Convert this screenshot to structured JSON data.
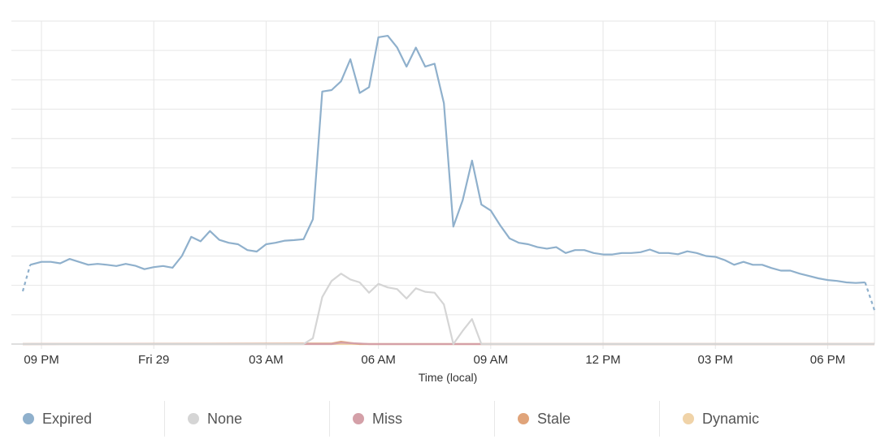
{
  "chart_data": {
    "type": "line",
    "xlabel": "Time (local)",
    "x_tick_labels": [
      "09 PM",
      "Fri 29",
      "03 AM",
      "06 AM",
      "09 AM",
      "12 PM",
      "03 PM",
      "06 PM"
    ],
    "ylim": [
      0,
      110
    ],
    "grid": true,
    "legend_position": "bottom",
    "series": [
      {
        "name": "Expired",
        "color": "#8fb0cc",
        "values": [
          [
            0.0,
            18
          ],
          [
            0.2,
            27
          ],
          [
            0.5,
            28
          ],
          [
            0.75,
            28
          ],
          [
            1.0,
            27.5
          ],
          [
            1.25,
            29
          ],
          [
            1.5,
            28
          ],
          [
            1.75,
            27
          ],
          [
            2.0,
            27.3
          ],
          [
            2.25,
            27
          ],
          [
            2.5,
            26.6
          ],
          [
            2.75,
            27.3
          ],
          [
            3.0,
            26.7
          ],
          [
            3.25,
            25.5
          ],
          [
            3.5,
            26.2
          ],
          [
            3.75,
            26.6
          ],
          [
            4.0,
            26
          ],
          [
            4.25,
            30
          ],
          [
            4.5,
            36.5
          ],
          [
            4.75,
            35
          ],
          [
            5.0,
            38.5
          ],
          [
            5.25,
            35.5
          ],
          [
            5.5,
            34.5
          ],
          [
            5.75,
            34
          ],
          [
            6.0,
            32
          ],
          [
            6.25,
            31.5
          ],
          [
            6.5,
            34
          ],
          [
            6.75,
            34.5
          ],
          [
            7.0,
            35.2
          ],
          [
            7.25,
            35.4
          ],
          [
            7.5,
            35.7
          ],
          [
            7.75,
            42.5
          ],
          [
            8.0,
            86
          ],
          [
            8.25,
            86.5
          ],
          [
            8.5,
            89.5
          ],
          [
            8.75,
            97
          ],
          [
            9.0,
            85.5
          ],
          [
            9.25,
            87.5
          ],
          [
            9.5,
            104.5
          ],
          [
            9.75,
            105
          ],
          [
            10.0,
            101
          ],
          [
            10.25,
            94.5
          ],
          [
            10.5,
            101
          ],
          [
            10.75,
            94.5
          ],
          [
            11.0,
            95.5
          ],
          [
            11.25,
            82
          ],
          [
            11.5,
            40
          ],
          [
            11.75,
            49
          ],
          [
            12.0,
            62.5
          ],
          [
            12.25,
            47.5
          ],
          [
            12.5,
            45.5
          ],
          [
            12.75,
            40.5
          ],
          [
            13.0,
            36
          ],
          [
            13.25,
            34.5
          ],
          [
            13.5,
            34
          ],
          [
            13.75,
            33
          ],
          [
            14.0,
            32.5
          ],
          [
            14.25,
            33
          ],
          [
            14.5,
            31
          ],
          [
            14.75,
            32
          ],
          [
            15.0,
            32
          ],
          [
            15.25,
            31
          ],
          [
            15.5,
            30.5
          ],
          [
            15.75,
            30.5
          ],
          [
            16.0,
            31
          ],
          [
            16.25,
            31
          ],
          [
            16.5,
            31.3
          ],
          [
            16.75,
            32.2
          ],
          [
            17.0,
            31
          ],
          [
            17.25,
            31
          ],
          [
            17.5,
            30.6
          ],
          [
            17.75,
            31.6
          ],
          [
            18.0,
            31
          ],
          [
            18.25,
            30
          ],
          [
            18.5,
            29.7
          ],
          [
            18.75,
            28.6
          ],
          [
            19.0,
            27
          ],
          [
            19.25,
            28
          ],
          [
            19.5,
            27
          ],
          [
            19.75,
            27
          ],
          [
            20.0,
            25.9
          ],
          [
            20.25,
            25
          ],
          [
            20.5,
            25
          ],
          [
            20.75,
            24
          ],
          [
            21.0,
            23.2
          ],
          [
            21.25,
            22.4
          ],
          [
            21.5,
            21.8
          ],
          [
            21.75,
            21.5
          ],
          [
            22.0,
            21
          ],
          [
            22.25,
            20.8
          ],
          [
            22.5,
            21
          ],
          [
            22.75,
            11.5
          ]
        ]
      },
      {
        "name": "None",
        "color": "#d5d5d5",
        "values": [
          [
            0.0,
            0
          ],
          [
            7.5,
            0
          ],
          [
            7.75,
            2
          ],
          [
            8.0,
            16
          ],
          [
            8.25,
            21.5
          ],
          [
            8.5,
            24
          ],
          [
            8.75,
            22
          ],
          [
            9.0,
            21
          ],
          [
            9.25,
            17.5
          ],
          [
            9.5,
            20.5
          ],
          [
            9.75,
            19.3
          ],
          [
            10.0,
            18.7
          ],
          [
            10.25,
            15.5
          ],
          [
            10.5,
            19
          ],
          [
            10.75,
            17.8
          ],
          [
            11.0,
            17.5
          ],
          [
            11.25,
            13.5
          ],
          [
            11.5,
            0
          ],
          [
            11.75,
            4.5
          ],
          [
            12.0,
            8.5
          ],
          [
            12.25,
            0
          ],
          [
            22.75,
            0
          ]
        ]
      },
      {
        "name": "Miss",
        "color": "#d4a0a8",
        "values": [
          [
            0.0,
            0
          ],
          [
            8.25,
            0
          ],
          [
            8.5,
            0.5
          ],
          [
            8.75,
            0.3
          ],
          [
            9.0,
            0.2
          ],
          [
            9.25,
            0
          ],
          [
            22.75,
            0
          ]
        ]
      },
      {
        "name": "Stale",
        "color": "#e0a47a",
        "values": [
          [
            0.0,
            0
          ],
          [
            8.25,
            0.2
          ],
          [
            8.5,
            0.8
          ],
          [
            8.75,
            0.4
          ],
          [
            9.0,
            0
          ],
          [
            22.75,
            0
          ]
        ]
      },
      {
        "name": "Dynamic",
        "color": "#f0d3a8",
        "values": [
          [
            0.0,
            0
          ],
          [
            22.75,
            0
          ]
        ]
      }
    ]
  },
  "legend": {
    "items": [
      {
        "label": "Expired",
        "color": "#8fb0cc"
      },
      {
        "label": "None",
        "color": "#d5d5d5"
      },
      {
        "label": "Miss",
        "color": "#d4a0a8"
      },
      {
        "label": "Stale",
        "color": "#e0a47a"
      },
      {
        "label": "Dynamic",
        "color": "#f0d3a8"
      }
    ]
  }
}
